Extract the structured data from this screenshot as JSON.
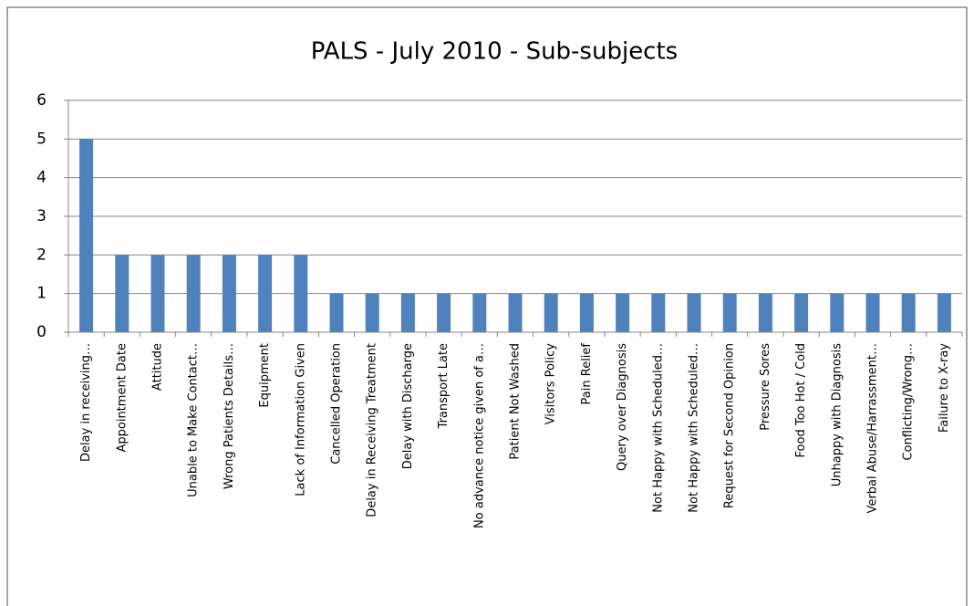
{
  "chart_data": {
    "type": "bar",
    "title": "PALS - July 2010 - Sub-subjects",
    "categories": [
      "Delay in receiving…",
      "Appointment Date",
      "Attitude",
      "Unable to Make Contact…",
      "Wrong Patients Details…",
      "Equipment",
      "Lack of Information Given",
      "Cancelled Operation",
      "Delay in Receiving Treatment",
      "Delay with Discharge",
      "Transport Late",
      "No advance notice given of a…",
      "Patient Not Washed",
      "Visitors Policy",
      "Pain Relief",
      "Query over Diagnosis",
      "Not Happy with Scheduled…",
      "Not Happy with Scheduled…",
      "Request for Second Opinion",
      "Pressure Sores",
      "Food Too Hot / Cold",
      "Unhappy with Diagnosis",
      "Verbal Abuse/Harrassment…",
      "Conflicting/Wrong…",
      "Failure to X-ray"
    ],
    "values": [
      5,
      2,
      2,
      2,
      2,
      2,
      2,
      1,
      1,
      1,
      1,
      1,
      1,
      1,
      1,
      1,
      1,
      1,
      1,
      1,
      1,
      1,
      1,
      1,
      1
    ],
    "color": "#4f81bd",
    "ylim": [
      0,
      6
    ],
    "yticks": [
      0,
      1,
      2,
      3,
      4,
      5,
      6
    ],
    "grid": true
  }
}
